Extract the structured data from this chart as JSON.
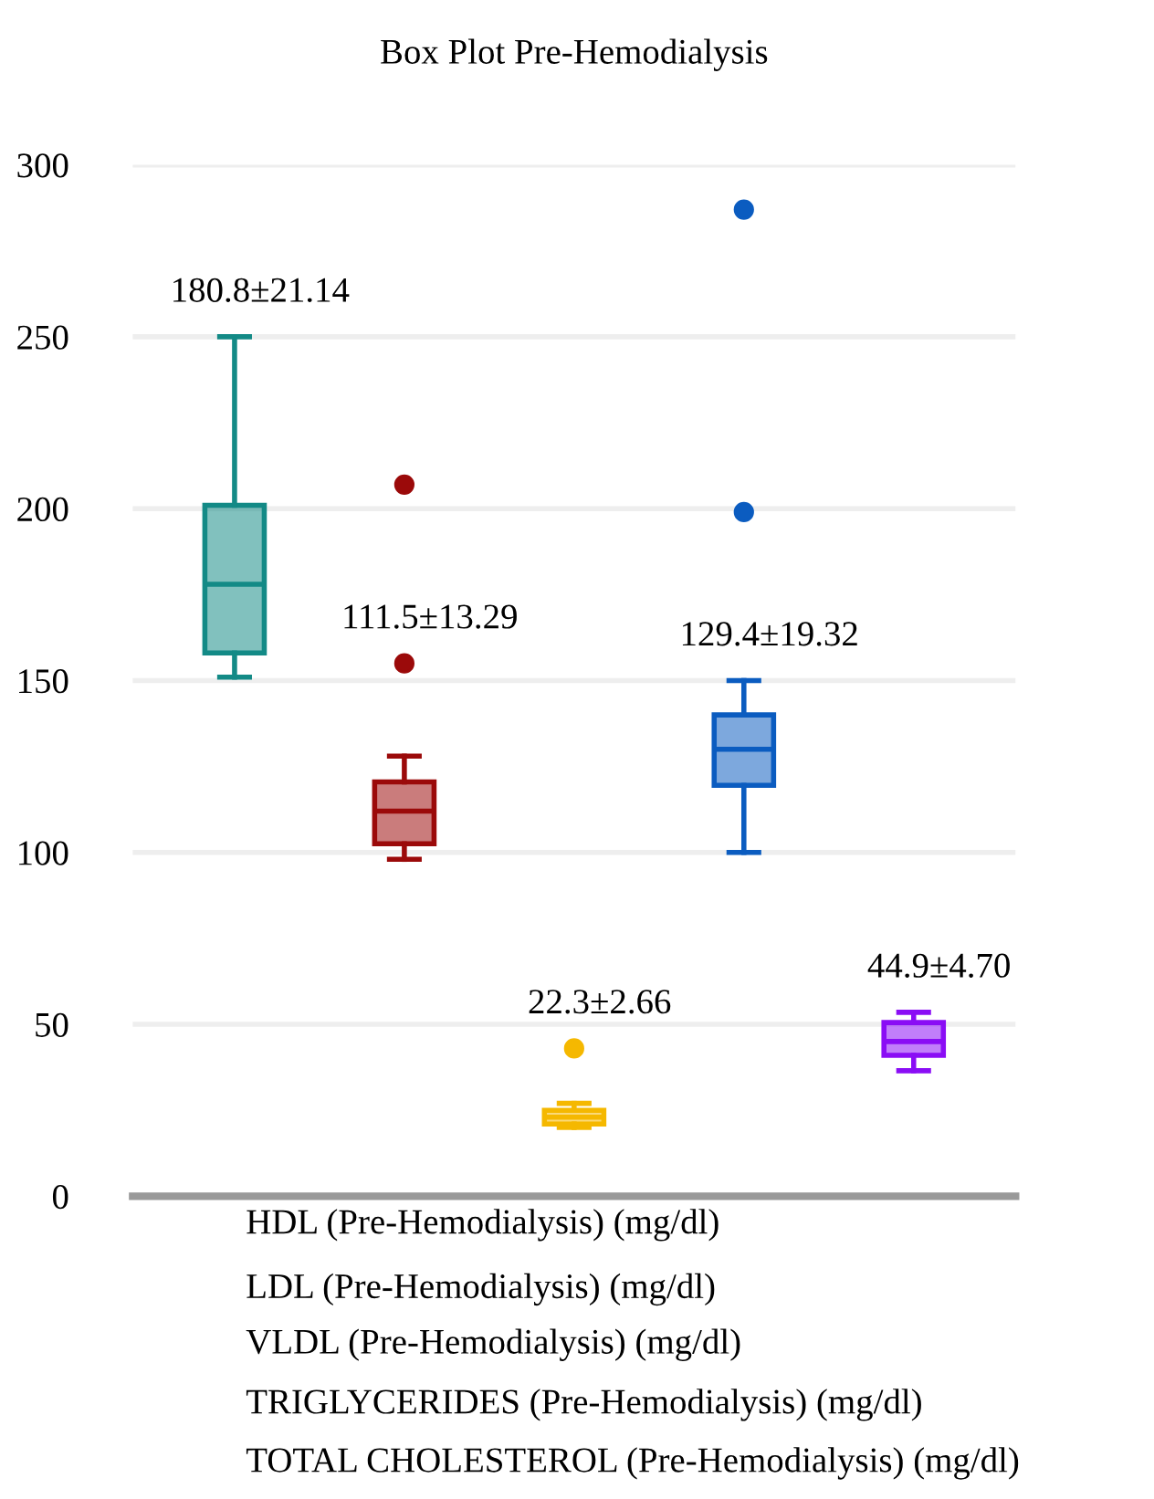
{
  "chart_data": {
    "type": "box",
    "title": "Box Plot Pre-Hemodialysis",
    "categories": [
      null,
      null,
      null,
      null,
      null
    ],
    "boxes": [
      {
        "low": 151,
        "q1": 158,
        "median": 178,
        "q3": 201,
        "high": 250
      },
      {
        "low": 98,
        "q1": 102.5,
        "median": 112,
        "q3": 120.5,
        "high": 128,
        "outliers": [
          207,
          155
        ]
      },
      {
        "low": 20,
        "q1": 21,
        "median": 23,
        "q3": 25,
        "high": 27,
        "outliers": [
          43
        ]
      },
      {
        "low": 100,
        "q1": 119.5,
        "median": 130,
        "q3": 140,
        "high": 150,
        "outliers": [
          287,
          199
        ]
      },
      {
        "low": 36.5,
        "q1": 41,
        "median": 45,
        "q3": 50.5,
        "high": 53.5
      }
    ],
    "colors": [
      "#138a86",
      "#9b0a0a",
      "#f5b800",
      "#0b5cc0",
      "#8a0df5"
    ],
    "value_labels": [
      "180.8±21.14",
      "111.5±13.29",
      "22.3±2.66",
      "129.4±19.32",
      "44.9±4.70"
    ],
    "ylim": [
      0,
      300
    ],
    "yticks": [
      0,
      50,
      100,
      150,
      200,
      250,
      300
    ],
    "grid": "y",
    "annotations": [
      "HDL (Pre-Hemodialysis) (mg/dl)",
      "LDL (Pre-Hemodialysis) (mg/dl)",
      "VLDL (Pre-Hemodialysis) (mg/dl)",
      "TRIGLYCERIDES (Pre-Hemodialysis) (mg/dl)",
      "TOTAL CHOLESTEROL (Pre-Hemodialysis) (mg/dl)"
    ]
  }
}
